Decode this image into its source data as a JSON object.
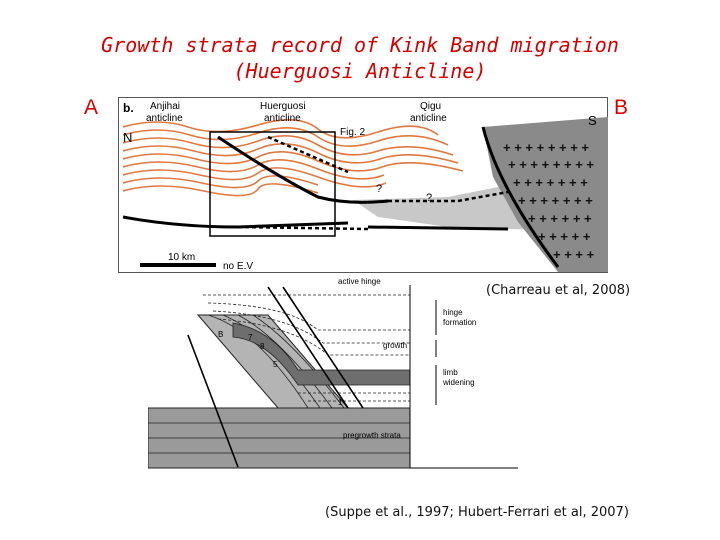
{
  "slide": {
    "title_line1": "Growth strata record of Kink Band migration",
    "title_line2": "(Huerguosi Anticline)",
    "marker_a": "A",
    "marker_b": "B",
    "citation_top": "(Charreau et al, 2008)",
    "citation_bottom": "(Suppe et al., 1997; Hubert-Ferrari et al, 2007)"
  },
  "section_figure": {
    "panel_label": "b.",
    "north": "N",
    "south": "S",
    "anticline_1": [
      "Anjihai",
      "anticline"
    ],
    "anticline_2": [
      "Huerguosi",
      "anticline"
    ],
    "anticline_3": [
      "Qigu",
      "anticline"
    ],
    "fig_ref": "Fig. 2",
    "question_marks": [
      "?",
      "?"
    ],
    "scale_label": "10 km",
    "ve_label": "no E.V"
  },
  "kink_figure": {
    "active_hinge": "active hinge",
    "hinge_formation": [
      "hinge",
      "formation"
    ],
    "growth": "growth",
    "limb_widening": [
      "limb",
      "widening"
    ],
    "pregrowth": "pregrowth strata",
    "bed_labels": [
      "B",
      "7",
      "8",
      "5",
      "1"
    ]
  },
  "colors": {
    "title": "#d40000",
    "strata_orange": "#e07840",
    "basement_fill": "#8a8a8a",
    "shade": "#c8c8c8"
  }
}
